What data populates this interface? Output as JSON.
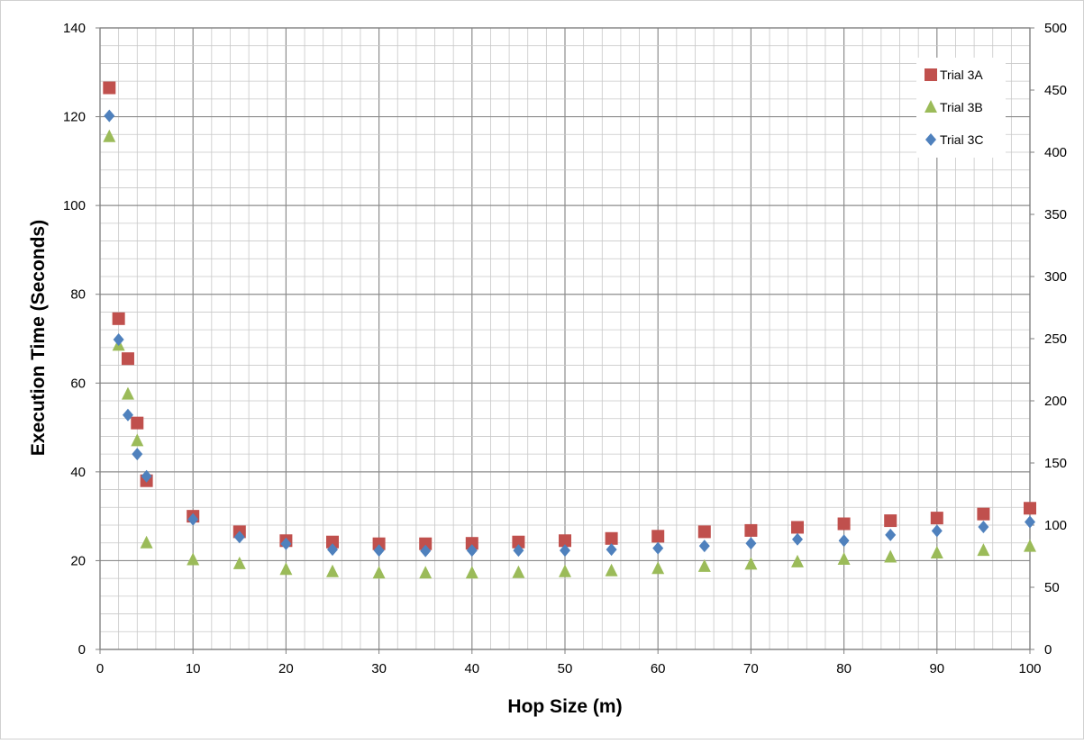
{
  "chart_data": {
    "type": "scatter",
    "title": "",
    "xlabel": "Hop Size (m)",
    "ylabel": "Execution Time (Seconds)",
    "xlim": [
      0,
      100
    ],
    "ylim": [
      0,
      140
    ],
    "y2lim": [
      0,
      500
    ],
    "x_ticks": [
      "0",
      "10",
      "20",
      "30",
      "40",
      "50",
      "60",
      "70",
      "80",
      "90",
      "100"
    ],
    "y_ticks": [
      "0",
      "20",
      "40",
      "60",
      "80",
      "100",
      "120",
      "140"
    ],
    "y2_ticks": [
      "0",
      "50",
      "100",
      "150",
      "200",
      "250",
      "300",
      "350",
      "400",
      "450",
      "500"
    ],
    "grid": true,
    "legend_position": "top-right",
    "x": [
      1,
      2,
      3,
      4,
      5,
      10,
      15,
      20,
      25,
      30,
      35,
      40,
      45,
      50,
      55,
      60,
      65,
      70,
      75,
      80,
      85,
      90,
      95,
      100
    ],
    "series": [
      {
        "name": "Trial 3A",
        "marker": "square",
        "color": "#c0504d",
        "values": [
          126.5,
          74.5,
          65.5,
          51,
          38,
          30,
          26.5,
          24.5,
          24.2,
          23.8,
          23.8,
          23.9,
          24.2,
          24.5,
          25,
          25.5,
          26.5,
          26.8,
          27.5,
          28.3,
          29,
          29.6,
          30.5,
          31.8
        ]
      },
      {
        "name": "Trial 3B",
        "marker": "triangle",
        "color": "#9bbb59",
        "values": [
          115.5,
          68.5,
          57.5,
          47,
          24,
          20.2,
          19.3,
          18,
          17.5,
          17.2,
          17.2,
          17.2,
          17.3,
          17.5,
          17.7,
          18.2,
          18.7,
          19.2,
          19.7,
          20.3,
          20.8,
          21.7,
          22.3,
          23.2
        ]
      },
      {
        "name": "Trial 3C",
        "marker": "diamond",
        "color": "#4f81bd",
        "values": [
          120.2,
          69.8,
          52.8,
          44,
          39,
          29.3,
          25.3,
          23.8,
          22.5,
          22.3,
          22.2,
          22.3,
          22.3,
          22.3,
          22.5,
          22.8,
          23.3,
          23.9,
          24.8,
          24.5,
          25.8,
          26.7,
          27.6,
          28.7
        ]
      }
    ]
  }
}
